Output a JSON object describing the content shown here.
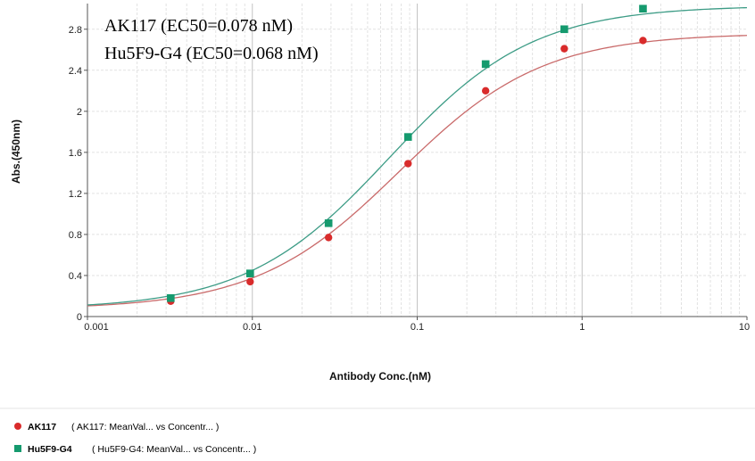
{
  "chart_data": {
    "type": "line",
    "x_scale": "log",
    "xlim": [
      0.001,
      10
    ],
    "ylim": [
      0,
      3.05
    ],
    "xlabel": "Antibody Conc.(nM)",
    "ylabel": "Abs.(450nm)",
    "x_ticks": [
      "0.001",
      "0.01",
      "0.1",
      "1",
      "10"
    ],
    "y_ticks": [
      "0",
      "0.4",
      "0.8",
      "1.2",
      "1.6",
      "2",
      "2.4",
      "2.8"
    ],
    "grid": true,
    "annotations": [
      "AK117 (EC50=0.078 nM)",
      "Hu5F9-G4 (EC50=0.068 nM)"
    ],
    "series": [
      {
        "name": "AK117",
        "legend_desc": "( AK117: MeanVal...   vs Concentr...  )",
        "color": "#d92b2b",
        "fit_color": "#c96a6a",
        "marker": "circle",
        "x": [
          0.0032,
          0.0097,
          0.029,
          0.088,
          0.26,
          0.78,
          2.34
        ],
        "y": [
          0.15,
          0.34,
          0.77,
          1.49,
          2.2,
          2.61,
          2.69
        ]
      },
      {
        "name": "Hu5F9-G4",
        "legend_desc": "( Hu5F9-G4: MeanVal...   vs Concentr...  )",
        "color": "#159a6e",
        "fit_color": "#3d9c86",
        "marker": "square",
        "x": [
          0.0032,
          0.0097,
          0.029,
          0.088,
          0.26,
          0.78,
          2.34
        ],
        "y": [
          0.18,
          0.42,
          0.91,
          1.75,
          2.46,
          2.8,
          3.0
        ]
      }
    ],
    "fits": [
      {
        "bottom": 0.07,
        "top": 2.76,
        "ec50": 0.078,
        "hill": 1.0
      },
      {
        "bottom": 0.07,
        "top": 3.03,
        "ec50": 0.068,
        "hill": 1.0
      }
    ]
  }
}
